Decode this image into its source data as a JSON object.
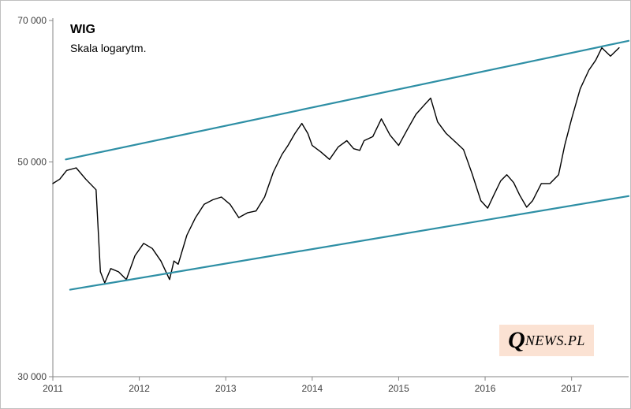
{
  "chart_data": {
    "type": "line",
    "title": "WIG",
    "subtitle": "Skala logarytm.",
    "scale": "log",
    "xlim": [
      2011.0,
      2017.66
    ],
    "ylim": [
      30000,
      70000
    ],
    "x_ticks": [
      "2011",
      "2012",
      "2013",
      "2014",
      "2015",
      "2016",
      "2017"
    ],
    "x_tick_values": [
      2011,
      2012,
      2013,
      2014,
      2015,
      2016,
      2017
    ],
    "y_ticks": [
      "30 000",
      "50 000",
      "70 000"
    ],
    "y_tick_values": [
      30000,
      50000,
      70000
    ],
    "grid": false,
    "legend": "none",
    "series": [
      {
        "color": "#000000",
        "x": [
          2011.0,
          2011.08,
          2011.16,
          2011.27,
          2011.38,
          2011.5,
          2011.55,
          2011.6,
          2011.67,
          2011.76,
          2011.85,
          2011.95,
          2012.05,
          2012.15,
          2012.25,
          2012.35,
          2012.4,
          2012.45,
          2012.55,
          2012.65,
          2012.75,
          2012.85,
          2012.95,
          2013.05,
          2013.15,
          2013.25,
          2013.35,
          2013.45,
          2013.55,
          2013.65,
          2013.72,
          2013.8,
          2013.88,
          2013.95,
          2014.0,
          2014.1,
          2014.2,
          2014.3,
          2014.4,
          2014.48,
          2014.55,
          2014.6,
          2014.7,
          2014.8,
          2014.9,
          2015.0,
          2015.1,
          2015.2,
          2015.3,
          2015.37,
          2015.45,
          2015.55,
          2015.65,
          2015.75,
          2015.85,
          2015.95,
          2016.03,
          2016.1,
          2016.18,
          2016.25,
          2016.33,
          2016.4,
          2016.48,
          2016.55,
          2016.65,
          2016.75,
          2016.85,
          2016.92,
          2017.0,
          2017.1,
          2017.2,
          2017.28,
          2017.35,
          2017.45,
          2017.55
        ],
        "y": [
          47500,
          48000,
          49000,
          49300,
          48000,
          46800,
          38500,
          37500,
          38800,
          38500,
          37800,
          40000,
          41200,
          40700,
          39500,
          37800,
          39500,
          39200,
          42000,
          43800,
          45200,
          45700,
          46000,
          45200,
          43800,
          44300,
          44500,
          46000,
          48800,
          50900,
          52000,
          53500,
          54800,
          53500,
          52000,
          51200,
          50300,
          51800,
          52600,
          51600,
          51400,
          52600,
          53100,
          55400,
          53300,
          52000,
          54000,
          56000,
          57300,
          58200,
          55000,
          53500,
          52500,
          51500,
          48600,
          45600,
          44800,
          46200,
          47800,
          48500,
          47600,
          46200,
          44900,
          45600,
          47500,
          47500,
          48500,
          52000,
          55400,
          59500,
          62200,
          63700,
          65600,
          64300,
          65600
        ]
      },
      {
        "color": "#2e8fa5",
        "x": [
          2011.15,
          2017.66
        ],
        "y": [
          50300,
          66700
        ]
      },
      {
        "color": "#2e8fa5",
        "x": [
          2011.2,
          2017.66
        ],
        "y": [
          36900,
          46100
        ]
      }
    ]
  },
  "watermark": {
    "first_letter": "Q",
    "rest": "NEWS.PL"
  }
}
